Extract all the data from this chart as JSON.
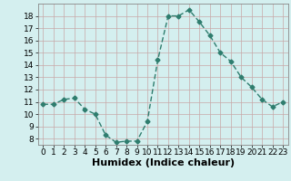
{
  "x": [
    0,
    1,
    2,
    3,
    4,
    5,
    6,
    7,
    8,
    9,
    10,
    11,
    12,
    13,
    14,
    15,
    16,
    17,
    18,
    19,
    20,
    21,
    22,
    23
  ],
  "y": [
    10.8,
    10.8,
    11.2,
    11.3,
    10.4,
    10.0,
    8.3,
    7.7,
    7.8,
    7.8,
    9.4,
    14.4,
    18.0,
    18.0,
    18.5,
    17.5,
    16.4,
    15.0,
    14.3,
    13.0,
    12.2,
    11.2,
    10.6,
    11.0
  ],
  "line_color": "#2e7d6e",
  "marker": "D",
  "marker_size": 2.5,
  "bg_color": "#d4efef",
  "grid_color": "#c8a8a8",
  "xlabel": "Humidex (Indice chaleur)",
  "ylim": [
    7.5,
    19.0
  ],
  "xlim": [
    -0.5,
    23.5
  ],
  "yticks": [
    8,
    9,
    10,
    11,
    12,
    13,
    14,
    15,
    16,
    17,
    18
  ],
  "xticks": [
    0,
    1,
    2,
    3,
    4,
    5,
    6,
    7,
    8,
    9,
    10,
    11,
    12,
    13,
    14,
    15,
    16,
    17,
    18,
    19,
    20,
    21,
    22,
    23
  ],
  "tick_fontsize": 6.5,
  "xlabel_fontsize": 8,
  "line_width": 1.0
}
